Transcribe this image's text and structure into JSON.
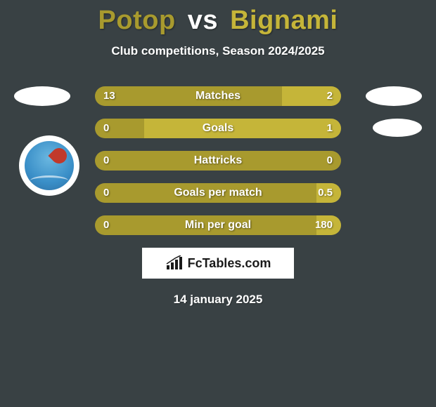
{
  "header": {
    "player1": "Potop",
    "vs": "vs",
    "player2": "Bignami",
    "subtitle": "Club competitions, Season 2024/2025"
  },
  "colors": {
    "player1": "#a89a2e",
    "player2": "#c5b539",
    "background": "#394144",
    "text": "#ffffff"
  },
  "stats": [
    {
      "label": "Matches",
      "left_val": "13",
      "right_val": "2",
      "left_pct": 76,
      "right_pct": 24
    },
    {
      "label": "Goals",
      "left_val": "0",
      "right_val": "1",
      "left_pct": 20,
      "right_pct": 80
    },
    {
      "label": "Hattricks",
      "left_val": "0",
      "right_val": "0",
      "left_pct": 100,
      "right_pct": 0
    },
    {
      "label": "Goals per match",
      "left_val": "0",
      "right_val": "0.5",
      "left_pct": 90,
      "right_pct": 10
    },
    {
      "label": "Min per goal",
      "left_val": "0",
      "right_val": "180",
      "left_pct": 90,
      "right_pct": 10
    }
  ],
  "brand": "FcTables.com",
  "date": "14 january 2025"
}
